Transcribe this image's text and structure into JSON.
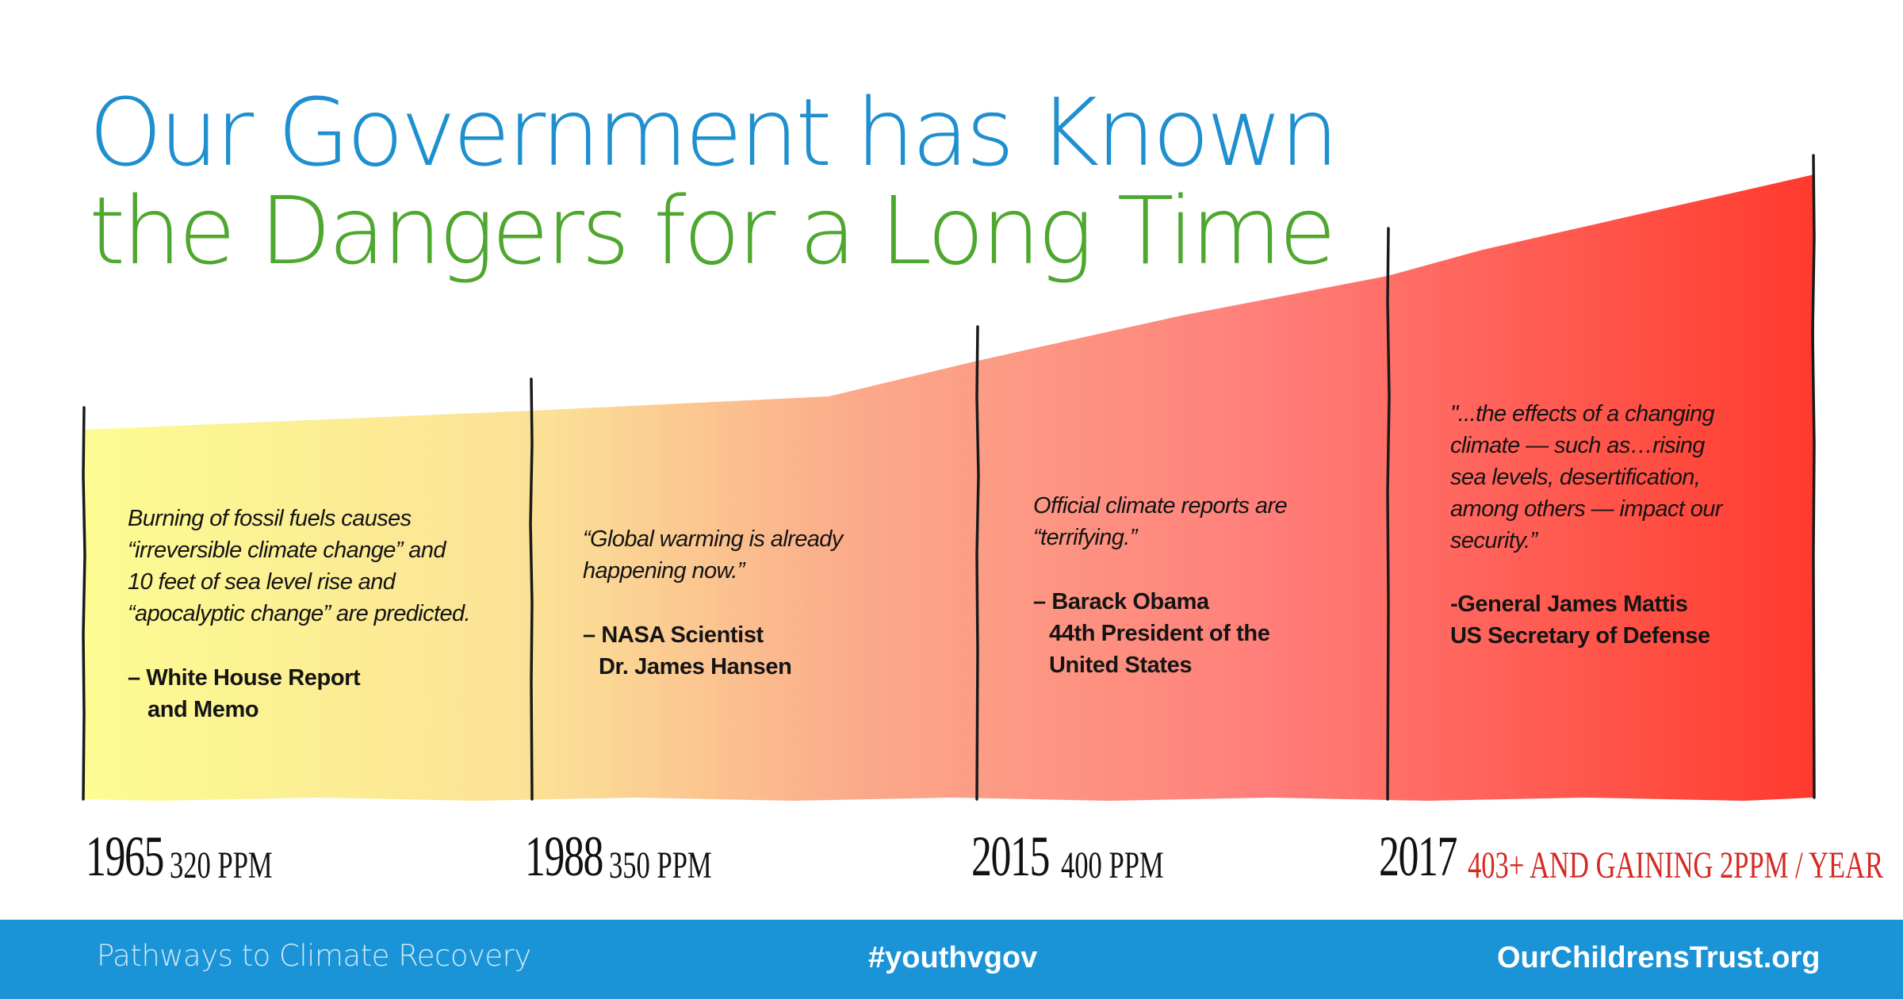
{
  "title": {
    "line1": "Our Government has Known",
    "line2": "the Dangers for a Long Time"
  },
  "colors": {
    "title_line1": "#1e8fcf",
    "title_line2": "#4ea72e",
    "gradient_start": "#fdfc92",
    "gradient_mid": "#ff7f7a",
    "gradient_end": "#ff3a2d",
    "footer": "#1a94d6",
    "accent_text": "#d42a22"
  },
  "timeline": [
    {
      "year": "1965",
      "ppm": "320 PPM",
      "quote": [
        "Burning of fossil fuels causes",
        "“irreversible climate change” and",
        "10 feet of sea level rise and",
        "“apocalyptic change” are predicted."
      ],
      "attribution": [
        "– White House Report",
        "and Memo"
      ]
    },
    {
      "year": "1988",
      "ppm": "350 PPM",
      "quote": [
        "“Global warming is already",
        "happening now.”"
      ],
      "attribution": [
        "– NASA Scientist",
        "Dr. James Hansen"
      ]
    },
    {
      "year": "2015",
      "ppm": "400 PPM",
      "quote": [
        "Official climate reports are",
        "“terrifying.”"
      ],
      "attribution": [
        "– Barack Obama",
        "44th President of the",
        "United States"
      ]
    },
    {
      "year": "2017",
      "ppm": "403+ AND GAINING 2PPM / YEAR",
      "quote": [
        "\"...the effects of a changing",
        "climate — such as…rising",
        "sea levels, desertification,",
        "among others — impact our",
        "security.”"
      ],
      "attribution": [
        "-General James Mattis",
        "US Secretary of Defense"
      ]
    }
  ],
  "footer": {
    "left": "Pathways to Climate Recovery",
    "middle": "#youthvgov",
    "right": "OurChildrensTrust.org"
  }
}
